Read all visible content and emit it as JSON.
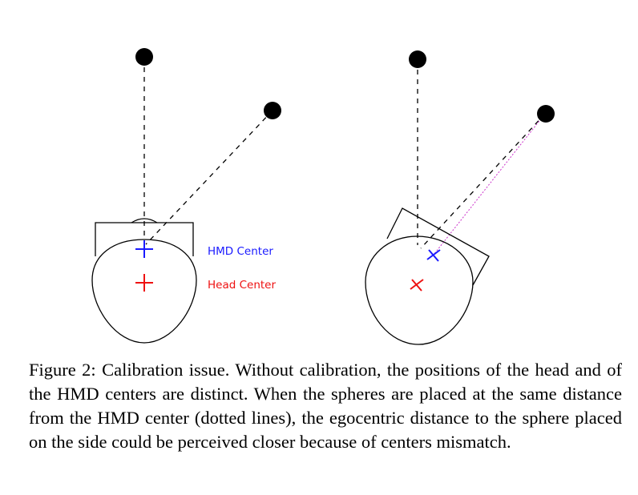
{
  "figure": {
    "labels": {
      "hmd_center": "HMD Center",
      "head_center": "Head Center"
    },
    "colors": {
      "hmd": "#1a1aff",
      "head": "#ee1111",
      "calibrated_line": "#cc33cc",
      "ink": "#000000"
    }
  },
  "caption": {
    "label": "Figure 2:",
    "text": "Calibration issue. Without calibration, the positions of the head and of the HMD centers are distinct. When the spheres are placed at the same distance from the HMD center (dotted lines), the egocentric distance to the sphere placed on the side could be perceived closer because of centers mismatch."
  }
}
